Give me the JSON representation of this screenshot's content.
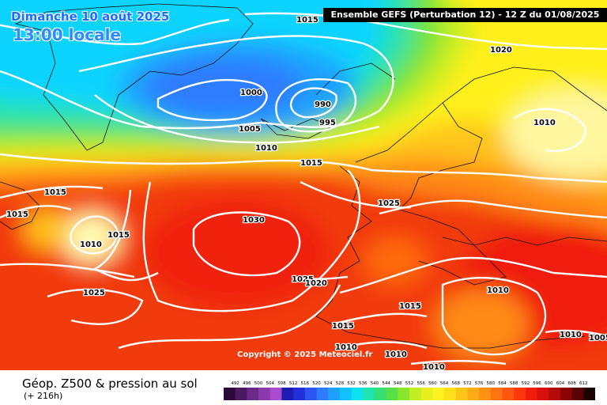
{
  "header": {
    "date_line": "Dimanche 10 août 2025",
    "local_time": "13:00 locale",
    "model_line": "Ensemble GEFS  (Perturbation 12)  -  12 Z du 01/08/2025"
  },
  "footer": {
    "product": "Géop. Z500 & pression au sol",
    "lead": "(+ 216h)",
    "copyright": "Copyright © 2025 Meteociel.fr"
  },
  "legend": {
    "ticks": [
      "492",
      "496",
      "500",
      "504",
      "508",
      "512",
      "516",
      "520",
      "524",
      "528",
      "532",
      "536",
      "540",
      "544",
      "548",
      "552",
      "556",
      "560",
      "564",
      "568",
      "572",
      "576",
      "580",
      "584",
      "588",
      "592",
      "596",
      "600",
      "604",
      "608",
      "612"
    ],
    "colors": [
      "#2b0a3b",
      "#4a1a5e",
      "#6b2a88",
      "#8b3aaa",
      "#aa4acc",
      "#1c1cb0",
      "#2230d8",
      "#2a55f0",
      "#2f7bff",
      "#1ea0ff",
      "#10c2ff",
      "#0de0ef",
      "#20e3b0",
      "#36de76",
      "#55e045",
      "#8ae62b",
      "#c0ee22",
      "#e6f020",
      "#fff21e",
      "#ffe11a",
      "#ffc61a",
      "#ffab16",
      "#ff9012",
      "#ff7410",
      "#ff560e",
      "#ff380c",
      "#f01d0b",
      "#d8100b",
      "#b40a0a",
      "#8a0404",
      "#5a0202",
      "#1a0000"
    ]
  },
  "map": {
    "isobars": [
      "1015",
      "1020",
      "1000",
      "990",
      "995",
      "1005",
      "1010",
      "1010",
      "1015",
      "1015",
      "1015",
      "1010",
      "1015",
      "1025",
      "1030",
      "1025",
      "1020",
      "1025",
      "1010",
      "1015",
      "1015",
      "1010",
      "1010",
      "1010",
      "1010",
      "1005"
    ]
  }
}
